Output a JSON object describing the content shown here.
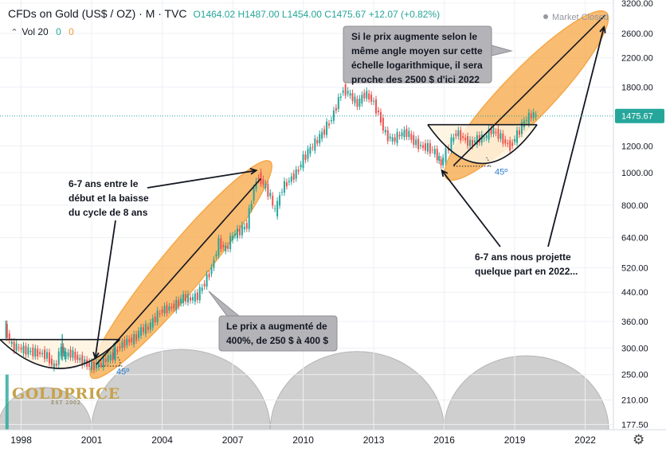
{
  "header": {
    "symbol": "CFDs on Gold (US$ / OZ) · M · TVC",
    "open": "O1464.02",
    "high": "H1487.00",
    "low": "L1454.00",
    "close": "C1475.67",
    "change": "+12.07 (+0.82%)"
  },
  "volume": {
    "label": "Vol 20",
    "v1": "0",
    "v2": "0"
  },
  "market_status": "Market Closed",
  "logo": {
    "name": "GOLDPRICE",
    "tag": "EST 2002"
  },
  "chart_data": {
    "type": "line",
    "title": "CFDs on Gold (US$ / OZ)",
    "interval": "M",
    "source": "TVC",
    "y_scale": "log",
    "ylim": [
      175,
      3200
    ],
    "y_ticks": [
      3200.0,
      2600.0,
      2200.0,
      1800.0,
      1475.67,
      1200.0,
      1000.0,
      800.0,
      640.0,
      520.0,
      440.0,
      360.0,
      300.0,
      250.0,
      210.0,
      177.5
    ],
    "y_tick_labels": [
      "3200.00",
      "2600.00",
      "2200.00",
      "1800.00",
      "1475.67",
      "1200.00",
      "1000.00",
      "800.00",
      "640.00",
      "520.00",
      "440.00",
      "360.00",
      "300.00",
      "250.00",
      "210.00",
      "177.50"
    ],
    "x_ticks": [
      1998,
      2001,
      2004,
      2007,
      2010,
      2013,
      2016,
      2019,
      2022
    ],
    "xlim": [
      1997.1,
      2023.2
    ],
    "last_price": 1475.67,
    "last_price_label": "1475.67",
    "series": [
      {
        "values_x": [
          1997.4,
          1997.7,
          1998.0,
          1998.3,
          1998.6,
          1998.9,
          1999.2,
          1999.5,
          1999.8,
          1999.9,
          2000.2,
          2000.5,
          2000.8,
          2001.1,
          2001.4,
          2001.7,
          2002.0,
          2002.3,
          2002.6,
          2002.9,
          2003.2,
          2003.5,
          2003.8,
          2004.1,
          2004.4,
          2004.7,
          2005.0,
          2005.3,
          2005.6,
          2005.9,
          2006.2,
          2006.5,
          2006.8,
          2007.1,
          2007.4,
          2007.7,
          2008.0,
          2008.2,
          2008.5,
          2008.7,
          2008.9,
          2009.2,
          2009.5,
          2009.8,
          2010.1,
          2010.4,
          2010.7,
          2011.0,
          2011.3,
          2011.6,
          2011.8,
          2012.1,
          2012.4,
          2012.7,
          2013.0,
          2013.3,
          2013.6,
          2013.9,
          2014.2,
          2014.5,
          2014.8,
          2015.1,
          2015.4,
          2015.7,
          2015.95,
          2016.3,
          2016.6,
          2016.9,
          2017.2,
          2017.5,
          2017.8,
          2018.1,
          2018.4,
          2018.7,
          2018.9,
          2019.2,
          2019.5,
          2019.8,
          2020.0
        ],
        "values": [
          345,
          305,
          300,
          295,
          292,
          290,
          285,
          262,
          300,
          285,
          290,
          280,
          272,
          265,
          268,
          278,
          285,
          305,
          315,
          320,
          340,
          345,
          370,
          390,
          395,
          405,
          425,
          420,
          430,
          470,
          520,
          620,
          590,
          650,
          670,
          700,
          900,
          980,
          900,
          850,
          760,
          900,
          950,
          1000,
          1100,
          1180,
          1250,
          1340,
          1450,
          1650,
          1780,
          1700,
          1600,
          1720,
          1660,
          1500,
          1300,
          1250,
          1300,
          1320,
          1240,
          1200,
          1190,
          1150,
          1060,
          1200,
          1320,
          1270,
          1220,
          1260,
          1270,
          1340,
          1300,
          1230,
          1200,
          1300,
          1420,
          1490,
          1475.67
        ]
      }
    ],
    "bullish_bars": [
      {
        "x": 1997.35,
        "lo": 320,
        "hi": 362
      },
      {
        "x": 1999.75,
        "lo": 275,
        "hi": 330
      },
      {
        "x": 2001.95,
        "lo": 278,
        "hi": 310
      }
    ],
    "annotations": [
      {
        "text": "Si le prix augmente selon le même angle moyen sur cette échelle logarithmique, il sera proche des 2500 $ d'ici 2022"
      },
      {
        "text": "Le prix a augmenté de 400%, de 250 $ à 400 $"
      },
      {
        "text": "6-7 ans entre le début et la baisse du cycle de 8 ans"
      },
      {
        "text": "6-7 ans nous projette quelque part en 2022..."
      },
      {
        "text": "45º"
      },
      {
        "text": "45º"
      }
    ],
    "volume_series": [
      {
        "x": 1997.3,
        "value": 0
      }
    ],
    "cycles": [
      {
        "start": 1997.0,
        "end": 2001.0
      },
      {
        "start": 2001.0,
        "end": 2008.6
      },
      {
        "start": 2008.6,
        "end": 2016.0
      },
      {
        "start": 2016.0,
        "end": 2023.0
      }
    ],
    "grid": true,
    "legend": "none"
  },
  "colors": {
    "up": "#26a69a",
    "down": "#ef5350",
    "ellipse": "#f5a23c",
    "last_price": "#26a69a",
    "callout": "#b3b3b8"
  }
}
